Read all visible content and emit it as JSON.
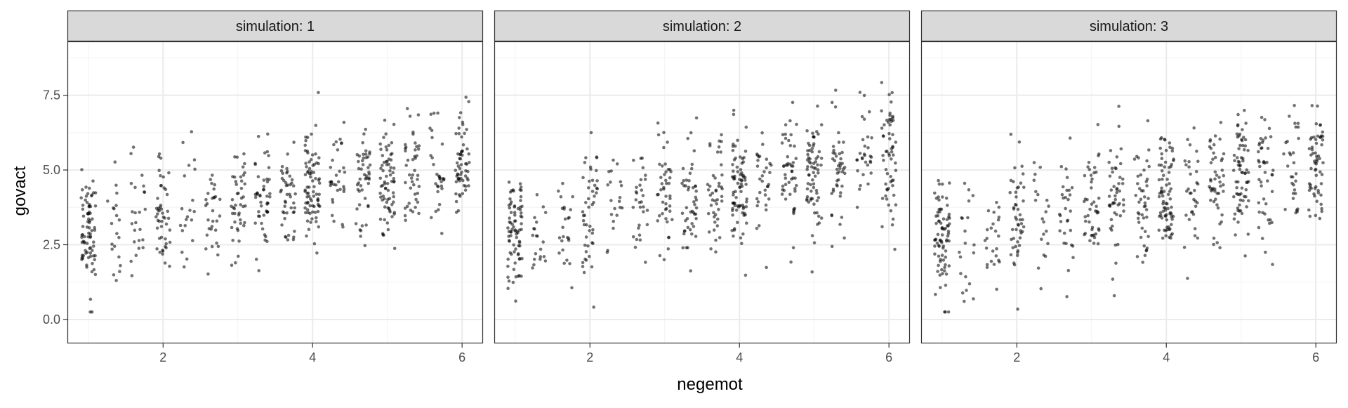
{
  "chart_data": {
    "type": "scatter",
    "title": "",
    "xlabel": "negemot",
    "ylabel": "govact",
    "xlim": [
      0.72,
      6.28
    ],
    "ylim": [
      -0.8,
      9.3
    ],
    "x_ticks": [
      2,
      4,
      6
    ],
    "y_ticks": [
      0.0,
      2.5,
      5.0,
      7.5
    ],
    "y_tick_labels": [
      "0.0",
      "2.5",
      "5.0",
      "7.5"
    ],
    "x_tick_labels": [
      "2",
      "4",
      "6"
    ],
    "grid": true,
    "point_color": "#000000",
    "point_opacity": 0.55,
    "x_levels": [
      1,
      1.33,
      1.67,
      2,
      2.33,
      2.67,
      3,
      3.33,
      3.67,
      4,
      4.33,
      4.67,
      5,
      5.33,
      5.67,
      6
    ],
    "level_counts": [
      80,
      20,
      24,
      48,
      20,
      30,
      44,
      48,
      44,
      80,
      32,
      48,
      70,
      44,
      30,
      60
    ],
    "jitter_width": 0.1,
    "facets": [
      {
        "label": "simulation: 1",
        "mean_intercept": 2.9,
        "mean_slope": 0.47,
        "sd": 0.95,
        "seed": 11
      },
      {
        "label": "simulation: 2",
        "mean_intercept": 2.85,
        "mean_slope": 0.5,
        "sd": 1.0,
        "seed": 23
      },
      {
        "label": "simulation: 3",
        "mean_intercept": 2.75,
        "mean_slope": 0.5,
        "sd": 1.05,
        "seed": 37
      }
    ]
  },
  "colors": {
    "strip_fill": "#d9d9d9",
    "panel_border": "#333333",
    "grid_major": "#ebebeb",
    "grid_minor": "#f3f3f3"
  }
}
